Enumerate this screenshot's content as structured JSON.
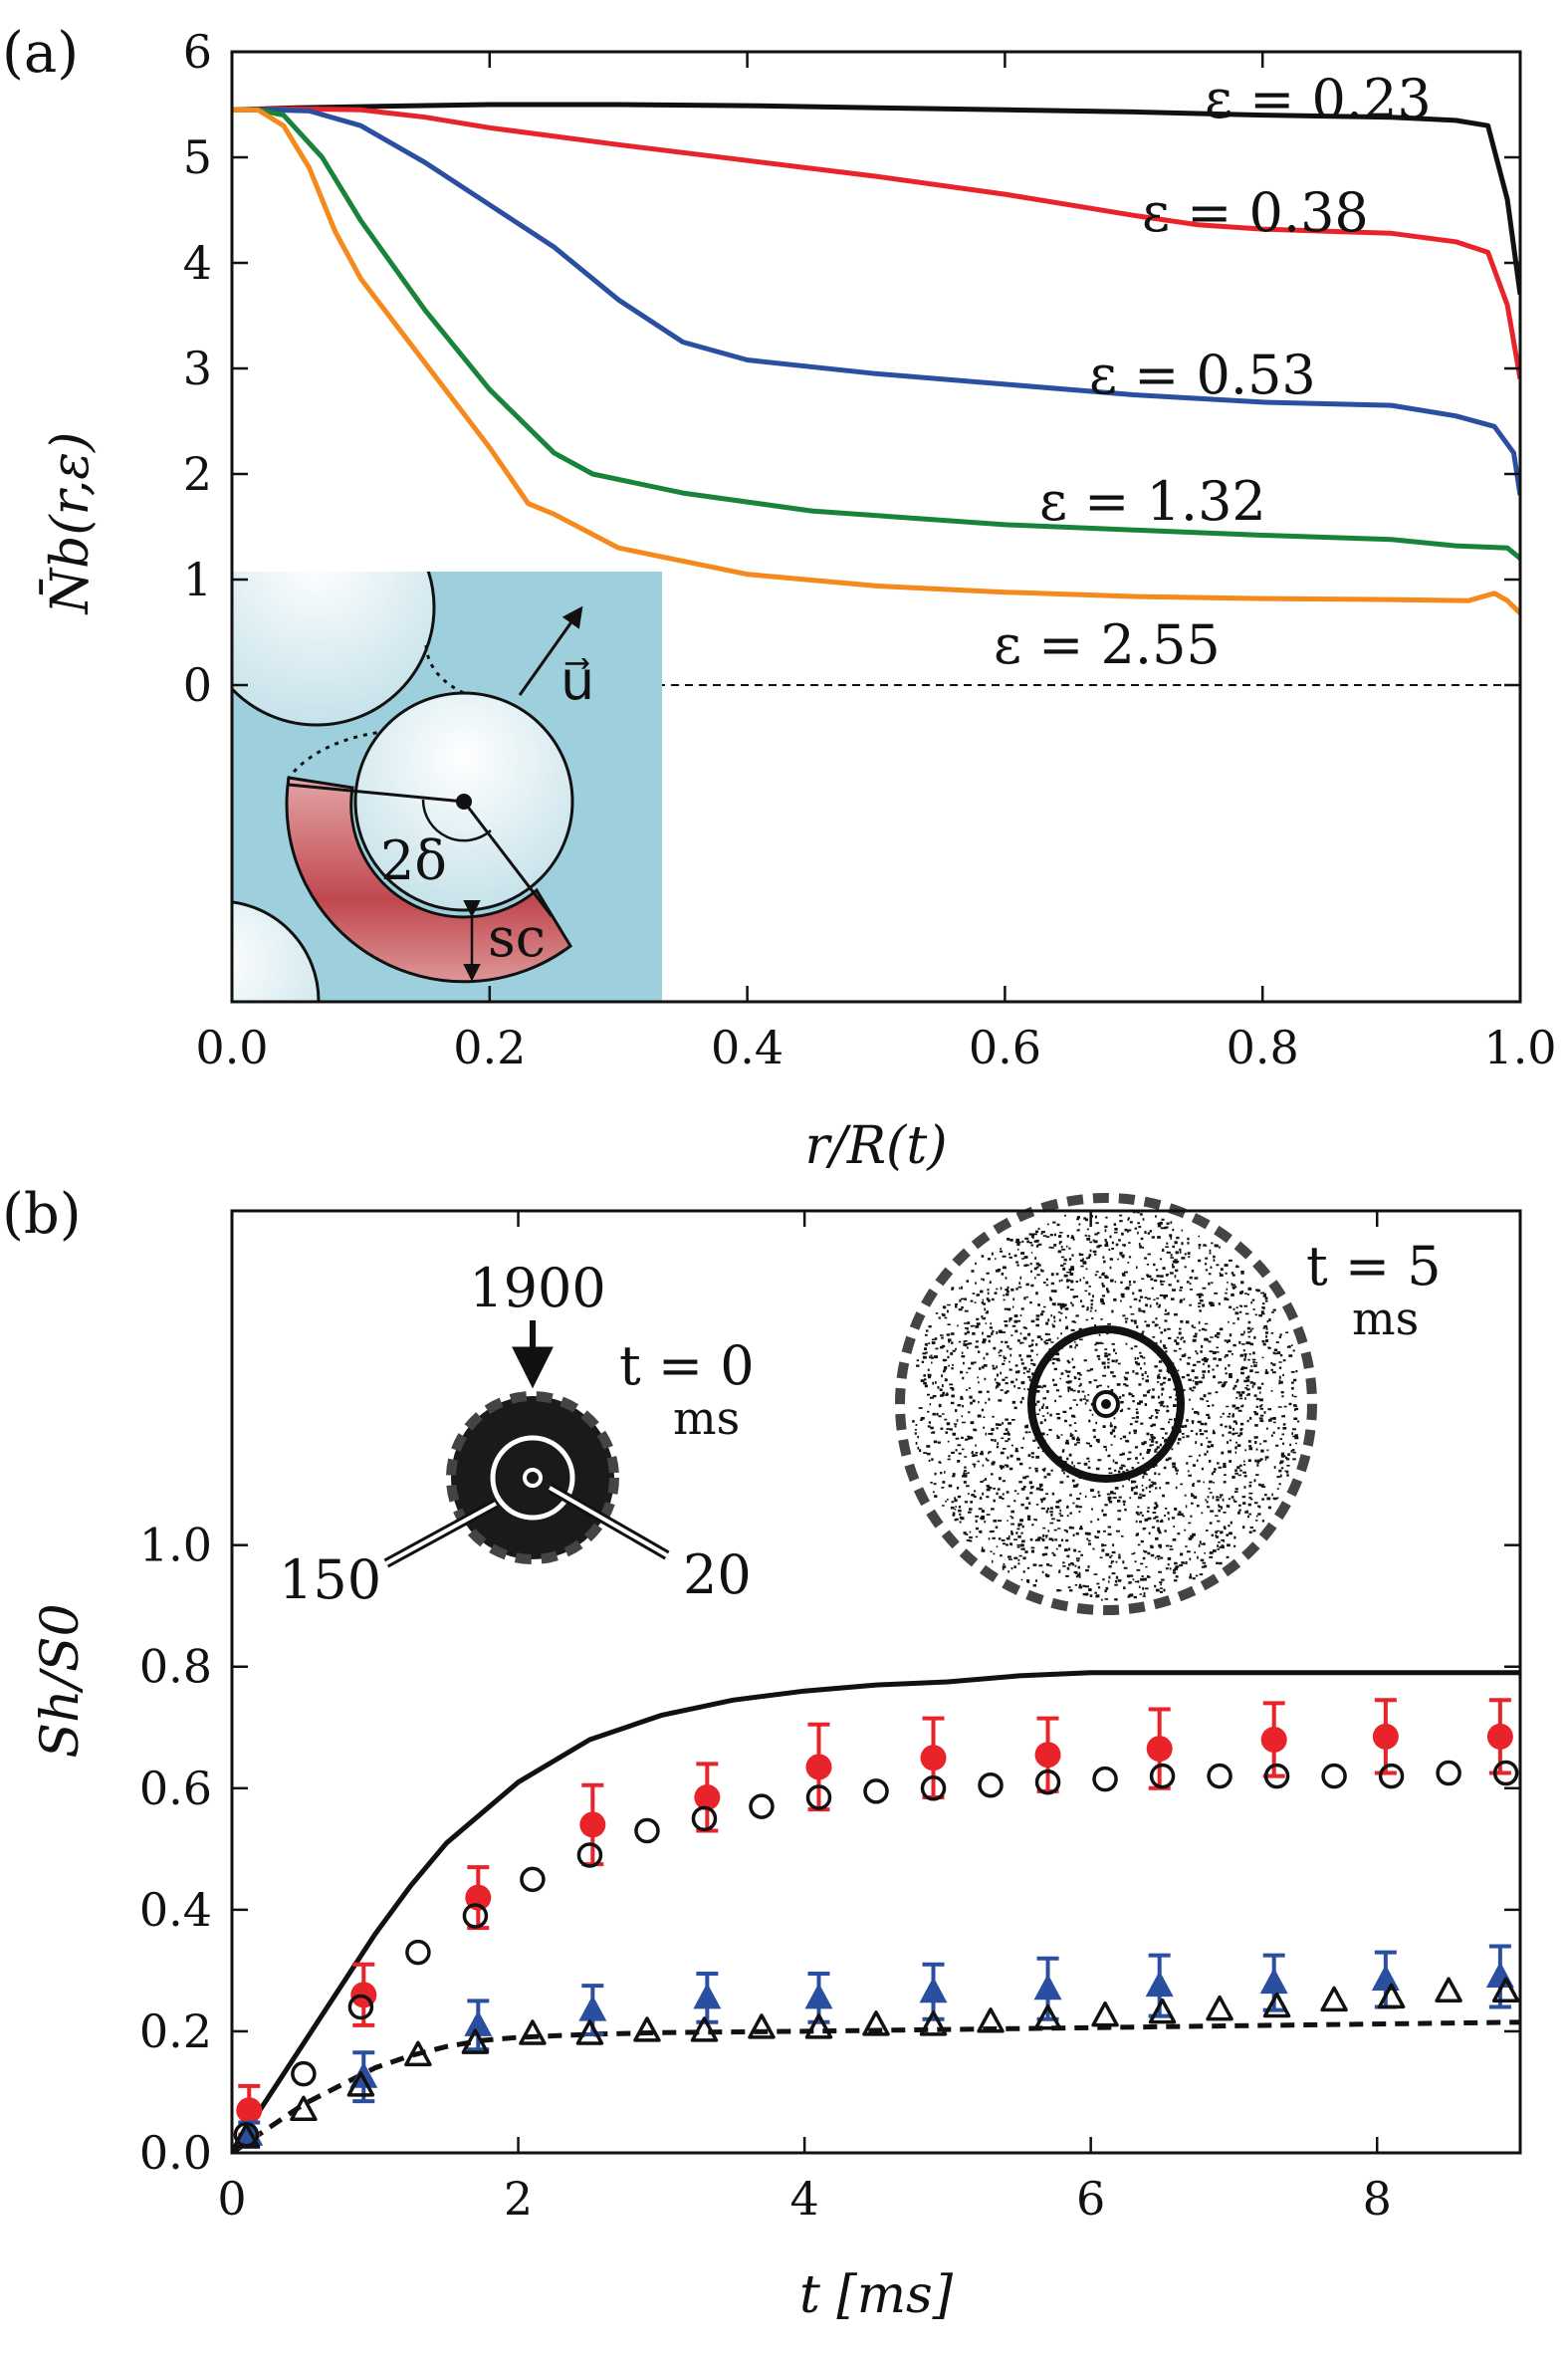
{
  "colors": {
    "black": "#111111",
    "red": "#e8232a",
    "blue": "#2b4fa0",
    "green": "#18843a",
    "orange": "#f5891c",
    "inset_bg": "#9dd0dc",
    "wedge": "#c0484f"
  },
  "chart_data": [
    {
      "type": "line",
      "panel_label": "(a)",
      "xlabel": "r/R(t)",
      "ylabel": "N̄b(r,ε)",
      "xlim": [
        0.0,
        1.0
      ],
      "ylim": [
        -3.0,
        6.0
      ],
      "xticks": [
        0.0,
        0.2,
        0.4,
        0.6,
        0.8,
        1.0
      ],
      "xtick_labels": [
        "0.0",
        "0.2",
        "0.4",
        "0.6",
        "0.8",
        "1.0"
      ],
      "yticks": [
        0,
        1,
        2,
        3,
        4,
        5,
        6
      ],
      "ytick_labels": [
        "0",
        "1",
        "2",
        "3",
        "4",
        "5",
        "6"
      ],
      "zero_line": "dashed",
      "series": [
        {
          "name": "ε = 0.23",
          "color": "black",
          "x": [
            0.0,
            0.05,
            0.1,
            0.2,
            0.3,
            0.4,
            0.5,
            0.6,
            0.7,
            0.8,
            0.9,
            0.95,
            0.975,
            0.99,
            1.0
          ],
          "y": [
            5.45,
            5.47,
            5.48,
            5.5,
            5.5,
            5.49,
            5.47,
            5.45,
            5.43,
            5.4,
            5.38,
            5.35,
            5.3,
            4.6,
            3.7
          ]
        },
        {
          "name": "ε = 0.38",
          "color": "red",
          "x": [
            0.0,
            0.05,
            0.1,
            0.15,
            0.2,
            0.3,
            0.4,
            0.5,
            0.6,
            0.7,
            0.75,
            0.8,
            0.85,
            0.9,
            0.95,
            0.975,
            0.99,
            1.0
          ],
          "y": [
            5.45,
            5.46,
            5.45,
            5.38,
            5.28,
            5.12,
            4.97,
            4.82,
            4.65,
            4.45,
            4.36,
            4.32,
            4.3,
            4.28,
            4.2,
            4.1,
            3.6,
            2.9
          ]
        },
        {
          "name": "ε = 0.53",
          "color": "blue",
          "x": [
            0.0,
            0.03,
            0.06,
            0.1,
            0.15,
            0.2,
            0.25,
            0.3,
            0.35,
            0.4,
            0.5,
            0.6,
            0.7,
            0.8,
            0.9,
            0.95,
            0.98,
            0.995,
            1.0
          ],
          "y": [
            5.45,
            5.45,
            5.44,
            5.3,
            4.95,
            4.55,
            4.15,
            3.65,
            3.25,
            3.08,
            2.95,
            2.85,
            2.75,
            2.68,
            2.65,
            2.55,
            2.45,
            2.2,
            1.8
          ]
        },
        {
          "name": "ε = 1.32",
          "color": "green",
          "x": [
            0.0,
            0.02,
            0.04,
            0.07,
            0.1,
            0.15,
            0.2,
            0.25,
            0.28,
            0.35,
            0.45,
            0.6,
            0.7,
            0.8,
            0.9,
            0.95,
            0.99,
            1.0
          ],
          "y": [
            5.45,
            5.45,
            5.4,
            5.0,
            4.4,
            3.55,
            2.8,
            2.2,
            2.0,
            1.82,
            1.65,
            1.52,
            1.47,
            1.42,
            1.38,
            1.32,
            1.3,
            1.2
          ]
        },
        {
          "name": "ε = 2.55",
          "color": "orange",
          "x": [
            0.0,
            0.02,
            0.04,
            0.06,
            0.08,
            0.1,
            0.15,
            0.2,
            0.23,
            0.25,
            0.3,
            0.4,
            0.5,
            0.6,
            0.7,
            0.8,
            0.9,
            0.96,
            0.98,
            0.99,
            1.0
          ],
          "y": [
            5.45,
            5.45,
            5.3,
            4.9,
            4.3,
            3.85,
            3.05,
            2.25,
            1.72,
            1.62,
            1.3,
            1.05,
            0.94,
            0.88,
            0.84,
            0.82,
            0.81,
            0.8,
            0.87,
            0.8,
            0.68
          ]
        }
      ],
      "annotations": [
        "ε = 0.23",
        "ε = 0.38",
        "ε = 0.53",
        "ε = 1.32",
        "ε = 2.55"
      ],
      "inset_labels": [
        "u⃗",
        "2δ",
        "sc"
      ]
    },
    {
      "type": "scatter",
      "panel_label": "(b)",
      "xlabel": "t [ms]",
      "ylabel": "Sh/S0",
      "xlim": [
        0,
        9
      ],
      "ylim": [
        0.0,
        1.55
      ],
      "xticks": [
        0,
        2,
        4,
        6,
        8
      ],
      "xtick_labels": [
        "0",
        "2",
        "4",
        "6",
        "8"
      ],
      "yticks": [
        0.0,
        0.2,
        0.4,
        0.6,
        0.8,
        1.0
      ],
      "ytick_labels": [
        "0.0",
        "0.2",
        "0.4",
        "0.6",
        "0.8",
        "1.0"
      ],
      "series": [
        {
          "name": "model solid",
          "kind": "line",
          "style": "solid",
          "t": [
            0,
            0.25,
            0.5,
            0.75,
            1,
            1.25,
            1.5,
            1.75,
            2,
            2.5,
            3,
            3.5,
            4,
            4.5,
            5,
            5.5,
            6,
            6.5,
            7,
            7.5,
            8,
            8.5,
            9
          ],
          "y": [
            0.0,
            0.09,
            0.18,
            0.27,
            0.36,
            0.44,
            0.51,
            0.56,
            0.61,
            0.68,
            0.72,
            0.745,
            0.76,
            0.77,
            0.775,
            0.785,
            0.79,
            0.79,
            0.79,
            0.79,
            0.79,
            0.79,
            0.79
          ]
        },
        {
          "name": "model dashed",
          "kind": "line",
          "style": "dashed",
          "t": [
            0,
            0.25,
            0.5,
            0.75,
            1,
            1.25,
            1.5,
            1.75,
            2,
            2.5,
            3,
            4,
            5,
            6,
            7,
            8,
            9
          ],
          "y": [
            0.0,
            0.04,
            0.08,
            0.11,
            0.14,
            0.16,
            0.175,
            0.185,
            0.19,
            0.195,
            0.198,
            0.2,
            0.203,
            0.206,
            0.209,
            0.212,
            0.215
          ]
        },
        {
          "name": "red filled circles",
          "kind": "marker",
          "marker": "filled-circle",
          "color": "red",
          "t": [
            0.12,
            0.92,
            1.72,
            2.52,
            3.32,
            4.1,
            4.9,
            5.7,
            6.48,
            7.28,
            8.06,
            8.86
          ],
          "y": [
            0.07,
            0.26,
            0.42,
            0.54,
            0.585,
            0.635,
            0.65,
            0.655,
            0.665,
            0.68,
            0.685,
            0.685
          ],
          "err": [
            0.04,
            0.05,
            0.05,
            0.065,
            0.055,
            0.07,
            0.065,
            0.06,
            0.065,
            0.06,
            0.06,
            0.06
          ]
        },
        {
          "name": "blue filled triangles",
          "kind": "marker",
          "marker": "filled-triangle",
          "color": "blue",
          "t": [
            0.12,
            0.92,
            1.72,
            2.52,
            3.32,
            4.1,
            4.9,
            5.7,
            6.48,
            7.28,
            8.06,
            8.86
          ],
          "y": [
            0.03,
            0.125,
            0.21,
            0.235,
            0.255,
            0.255,
            0.265,
            0.27,
            0.275,
            0.28,
            0.285,
            0.29
          ],
          "err": [
            0.02,
            0.04,
            0.04,
            0.04,
            0.04,
            0.04,
            0.045,
            0.05,
            0.05,
            0.045,
            0.045,
            0.05
          ]
        },
        {
          "name": "open circles",
          "kind": "marker",
          "marker": "open-circle",
          "color": "black",
          "t": [
            0.1,
            0.5,
            0.9,
            1.3,
            1.7,
            2.1,
            2.5,
            2.9,
            3.3,
            3.7,
            4.1,
            4.5,
            4.9,
            5.3,
            5.7,
            6.1,
            6.5,
            6.9,
            7.3,
            7.7,
            8.1,
            8.5,
            8.9
          ],
          "y": [
            0.03,
            0.13,
            0.24,
            0.33,
            0.39,
            0.45,
            0.49,
            0.53,
            0.55,
            0.57,
            0.585,
            0.595,
            0.6,
            0.605,
            0.61,
            0.615,
            0.62,
            0.62,
            0.62,
            0.62,
            0.62,
            0.625,
            0.625
          ]
        },
        {
          "name": "open triangles",
          "kind": "marker",
          "marker": "open-triangle",
          "color": "black",
          "t": [
            0.1,
            0.5,
            0.9,
            1.3,
            1.7,
            2.1,
            2.5,
            2.9,
            3.3,
            3.7,
            4.1,
            4.5,
            4.9,
            5.3,
            5.7,
            6.1,
            6.5,
            6.9,
            7.3,
            7.7,
            8.1,
            8.5,
            8.9
          ],
          "y": [
            0.025,
            0.07,
            0.11,
            0.16,
            0.18,
            0.195,
            0.195,
            0.2,
            0.2,
            0.205,
            0.205,
            0.21,
            0.21,
            0.215,
            0.22,
            0.225,
            0.23,
            0.235,
            0.24,
            0.25,
            0.255,
            0.265,
            0.265
          ]
        }
      ],
      "insets": [
        {
          "caption_t": "t = 0",
          "caption_unit": "ms",
          "labels": [
            "1900",
            "150",
            "20"
          ]
        },
        {
          "caption_t": "t = 5",
          "caption_unit": "ms"
        }
      ]
    }
  ]
}
